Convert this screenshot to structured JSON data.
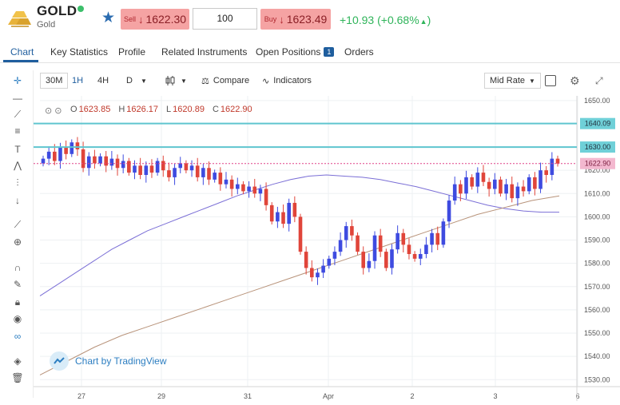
{
  "header": {
    "symbol": "GOLD",
    "name": "Gold",
    "sell_label": "Sell",
    "sell_price": "1622.30",
    "quantity": "100",
    "buy_label": "Buy",
    "buy_price": "1623.49",
    "change": "+10.93",
    "change_pct": "(+0.68%",
    "colors": {
      "sell_bg": "#f5a3a3",
      "positive": "#2fb45a",
      "accent": "#1f5e9e"
    }
  },
  "tabs": [
    {
      "label": "Chart",
      "active": true
    },
    {
      "label": "Key Statistics"
    },
    {
      "label": "Profile"
    },
    {
      "label": "Related Instruments"
    },
    {
      "label": "Open Positions",
      "badge": "1"
    },
    {
      "label": "Orders"
    }
  ],
  "toolbar": {
    "intervals": [
      "30M",
      "1H",
      "4H",
      "D"
    ],
    "active_interval": "1H",
    "compare": "Compare",
    "indicators": "Indicators",
    "price_type": "Mid Rate"
  },
  "sidebar_icons": [
    "crosshair-icon",
    "horizontal-line-icon",
    "trend-lines-icon",
    "fib-icon",
    "text-icon",
    "pattern-icon",
    "forecast-icon",
    "arrow-down-icon",
    "ruler-icon",
    "zoom-in-icon",
    "magnet-icon",
    "pen-icon",
    "lock-icon",
    "eye-icon",
    "link-icon",
    "layers-icon",
    "trash-icon"
  ],
  "ohlc": {
    "o_label": "O",
    "o": "1623.85",
    "h_label": "H",
    "h": "1626.17",
    "l_label": "L",
    "l": "1620.89",
    "c_label": "C",
    "c": "1622.90"
  },
  "watermark": "Chart by TradingView",
  "chart_data": {
    "type": "candlestick",
    "interval": "1H",
    "ylim": [
      1527,
      1652
    ],
    "y_ticks": [
      1530,
      1540,
      1550,
      1560,
      1570,
      1580,
      1590,
      1600,
      1610,
      1620,
      1630,
      1640,
      1650
    ],
    "x_labels": [
      "27",
      "29",
      "31",
      "Apr",
      "2",
      "3",
      "6"
    ],
    "horizontal_levels": [
      {
        "label": "1640.09",
        "value": 1640.09,
        "color": "#5fc5cf"
      },
      {
        "label": "1630.00",
        "value": 1630.0,
        "color": "#5fc5cf"
      }
    ],
    "last_price": {
      "label": "1622.90",
      "value": 1622.9,
      "color": "#e0448a"
    },
    "candle_colors": {
      "up": "#3e4be0",
      "down": "#e0453a"
    },
    "closes": [
      1625,
      1628,
      1624,
      1630,
      1627,
      1632,
      1629,
      1621,
      1626,
      1623,
      1626,
      1622,
      1625,
      1621,
      1624,
      1619,
      1622,
      1618,
      1622,
      1619,
      1624,
      1620,
      1617,
      1621,
      1623,
      1620,
      1622,
      1617,
      1621,
      1616,
      1619,
      1614,
      1616,
      1612,
      1614,
      1611,
      1613,
      1610,
      1612,
      1605,
      1598,
      1602,
      1597,
      1606,
      1600,
      1585,
      1578,
      1574,
      1576,
      1579,
      1582,
      1585,
      1590,
      1596,
      1592,
      1585,
      1578,
      1581,
      1592,
      1585,
      1578,
      1586,
      1593,
      1588,
      1584,
      1582,
      1584,
      1588,
      1593,
      1588,
      1598,
      1607,
      1614,
      1610,
      1617,
      1613,
      1619,
      1615,
      1612,
      1616,
      1610,
      1614,
      1608,
      1613,
      1611,
      1617,
      1612,
      1620,
      1618,
      1625,
      1622.9
    ],
    "ma_fast": [
      1566,
      1571,
      1576,
      1581,
      1586,
      1590,
      1594,
      1597,
      1600,
      1603,
      1606,
      1609,
      1611.5,
      1614,
      1616,
      1617.5,
      1618,
      1617.5,
      1617,
      1616,
      1614.5,
      1613,
      1611,
      1609,
      1607,
      1605,
      1603.5,
      1602.5,
      1602,
      1602
    ],
    "ma_slow": [
      1532,
      1538,
      1544,
      1549,
      1553,
      1557,
      1561,
      1565,
      1569,
      1573,
      1577,
      1581,
      1585,
      1589,
      1593,
      1597,
      1601,
      1604,
      1607,
      1609
    ],
    "ma_colors": {
      "fast": "#7b6fd6",
      "slow": "#b8937a"
    }
  }
}
